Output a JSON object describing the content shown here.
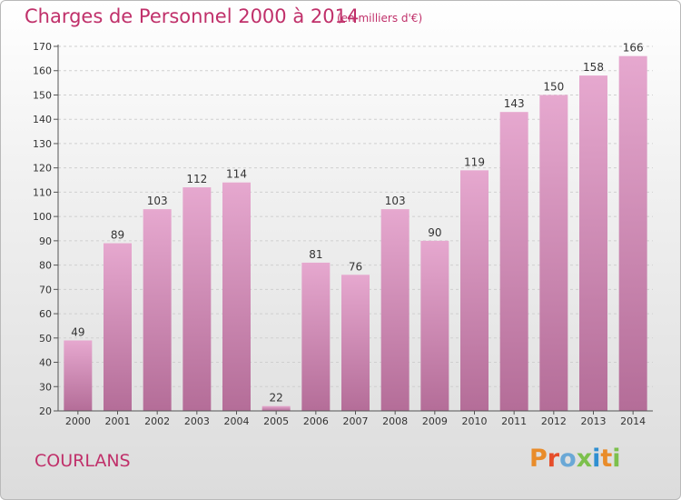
{
  "title": "Charges de Personnel 2000 à 2014",
  "subtitle": "(en milliers d'€)",
  "commune": "COURLANS",
  "brand": "Proxiti",
  "colors": {
    "text_accent": "#c0306a",
    "bar_top": "#e6a8cf",
    "bar_bottom": "#b46d98",
    "brand_letters": [
      "#e98c2a",
      "#e64d2a",
      "#6aa8d6",
      "#7cc04c",
      "#2f8fd1",
      "#e98c2a",
      "#7cc04c"
    ]
  },
  "chart_data": {
    "type": "bar",
    "categories": [
      "2000",
      "2001",
      "2002",
      "2003",
      "2004",
      "2005",
      "2006",
      "2007",
      "2008",
      "2009",
      "2010",
      "2011",
      "2012",
      "2013",
      "2014"
    ],
    "values": [
      49,
      89,
      103,
      112,
      114,
      22,
      81,
      76,
      103,
      90,
      119,
      143,
      150,
      158,
      166
    ],
    "ylim": [
      20,
      170
    ],
    "yticks": [
      20,
      30,
      40,
      50,
      60,
      70,
      80,
      90,
      100,
      110,
      120,
      130,
      140,
      150,
      160,
      170
    ],
    "grid": true
  }
}
